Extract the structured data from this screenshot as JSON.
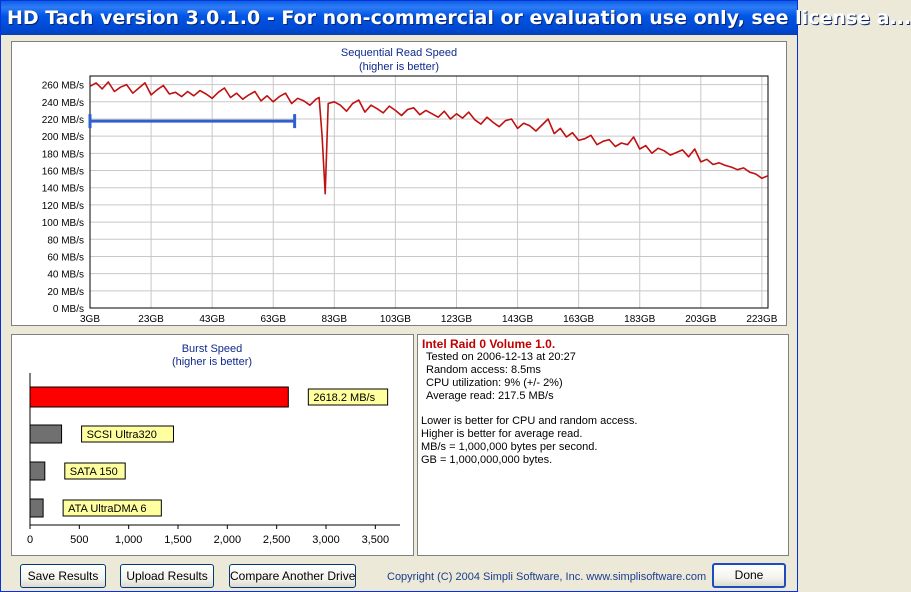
{
  "window": {
    "title": "HD Tach version 3.0.1.0  - For non-commercial or evaluation use only, see license a..."
  },
  "sequential": {
    "title": "Sequential Read Speed",
    "subtitle": "(higher is better)"
  },
  "burst": {
    "title": "Burst Speed",
    "subtitle": "(higher is better)"
  },
  "info": {
    "drive_name": "Intel Raid 0 Volume 1.0.",
    "tested_on": "Tested on 2006-12-13 at 20:27",
    "random_access": "Random access: 8.5ms",
    "cpu_utilization": "CPU utilization: 9% (+/- 2%)",
    "average_read": "Average read: 217.5 MB/s",
    "note1": "Lower is better for CPU and random access.",
    "note2": "Higher is better for average read.",
    "note3": "MB/s = 1,000,000 bytes per second.",
    "note4": "GB = 1,000,000,000 bytes."
  },
  "buttons": {
    "save": "Save Results",
    "upload": "Upload Results",
    "compare": "Compare Another Drive",
    "done": "Done"
  },
  "footer": {
    "copyright": "Copyright (C) 2004 Simpli Software, Inc. www.simplisoftware.com"
  },
  "chart_data": [
    {
      "type": "line",
      "title": "Sequential Read Speed",
      "subtitle": "(higher is better)",
      "ylabel": "",
      "xlabel": "",
      "ylim": [
        0,
        270
      ],
      "xlim": [
        3,
        225
      ],
      "y_ticks": [
        "0 MB/s",
        "20 MB/s",
        "40 MB/s",
        "60 MB/s",
        "80 MB/s",
        "100 MB/s",
        "120 MB/s",
        "140 MB/s",
        "160 MB/s",
        "180 MB/s",
        "200 MB/s",
        "220 MB/s",
        "240 MB/s",
        "260 MB/s"
      ],
      "y_tick_values": [
        0,
        20,
        40,
        60,
        80,
        100,
        120,
        140,
        160,
        180,
        200,
        220,
        240,
        260
      ],
      "x_ticks": [
        "3GB",
        "23GB",
        "43GB",
        "63GB",
        "83GB",
        "103GB",
        "123GB",
        "143GB",
        "163GB",
        "183GB",
        "203GB",
        "223GB"
      ],
      "x_tick_values": [
        3,
        23,
        43,
        63,
        83,
        103,
        123,
        143,
        163,
        183,
        203,
        223
      ],
      "grid": true,
      "colors": {
        "read": "#c01010",
        "average": "#3060d0"
      },
      "series": [
        {
          "color": "#c01010",
          "x": [
            3,
            5,
            7,
            9,
            11,
            13,
            15,
            17,
            19,
            21,
            23,
            25,
            27,
            29,
            31,
            33,
            35,
            37,
            39,
            41,
            43,
            45,
            47,
            49,
            51,
            53,
            55,
            57,
            59,
            61,
            63,
            65,
            67,
            69,
            71,
            73,
            75,
            77,
            78,
            79,
            80,
            81,
            83,
            85,
            87,
            89,
            91,
            93,
            95,
            97,
            99,
            101,
            103,
            105,
            107,
            109,
            111,
            113,
            115,
            117,
            119,
            121,
            123,
            125,
            127,
            129,
            131,
            133,
            135,
            137,
            139,
            141,
            143,
            145,
            147,
            149,
            151,
            153,
            155,
            157,
            159,
            161,
            163,
            165,
            167,
            169,
            171,
            173,
            175,
            177,
            179,
            181,
            183,
            185,
            187,
            189,
            191,
            193,
            195,
            197,
            199,
            201,
            203,
            205,
            207,
            209,
            211,
            213,
            215,
            217,
            219,
            221,
            223,
            225
          ],
          "y": [
            258,
            262,
            255,
            263,
            252,
            257,
            260,
            250,
            256,
            262,
            248,
            254,
            259,
            249,
            251,
            246,
            252,
            247,
            253,
            249,
            244,
            251,
            256,
            245,
            250,
            243,
            248,
            252,
            241,
            247,
            240,
            246,
            250,
            238,
            244,
            241,
            236,
            243,
            245,
            200,
            133,
            238,
            240,
            236,
            229,
            238,
            242,
            228,
            236,
            232,
            227,
            235,
            230,
            224,
            231,
            233,
            225,
            230,
            226,
            222,
            229,
            220,
            226,
            221,
            228,
            219,
            214,
            222,
            216,
            211,
            218,
            220,
            209,
            215,
            212,
            206,
            213,
            220,
            203,
            209,
            199,
            204,
            195,
            197,
            201,
            190,
            194,
            196,
            188,
            192,
            190,
            199,
            185,
            189,
            180,
            186,
            183,
            178,
            181,
            184,
            176,
            185,
            170,
            173,
            167,
            169,
            166,
            164,
            161,
            163,
            158,
            156,
            151,
            154
          ]
        }
      ],
      "average_marker": {
        "x_start": 3,
        "x_end": 70,
        "y": 217.5
      }
    },
    {
      "type": "bar",
      "title": "Burst Speed",
      "subtitle": "(higher is better)",
      "orientation": "horizontal",
      "xlim": [
        0,
        3750
      ],
      "x_ticks": [
        "0",
        "500",
        "1,000",
        "1,500",
        "2,000",
        "2,500",
        "3,000",
        "3,500"
      ],
      "x_tick_values": [
        0,
        500,
        1000,
        1500,
        2000,
        2500,
        3000,
        3500
      ],
      "categories": [
        "2618.2 MB/s",
        "SCSI Ultra320",
        "SATA 150",
        "ATA UltraDMA 6"
      ],
      "values": [
        2618.2,
        320,
        150,
        133
      ],
      "bar_colors": [
        "#ff0000",
        "#707070",
        "#707070",
        "#707070"
      ],
      "label_background": "#ffffa0"
    }
  ]
}
